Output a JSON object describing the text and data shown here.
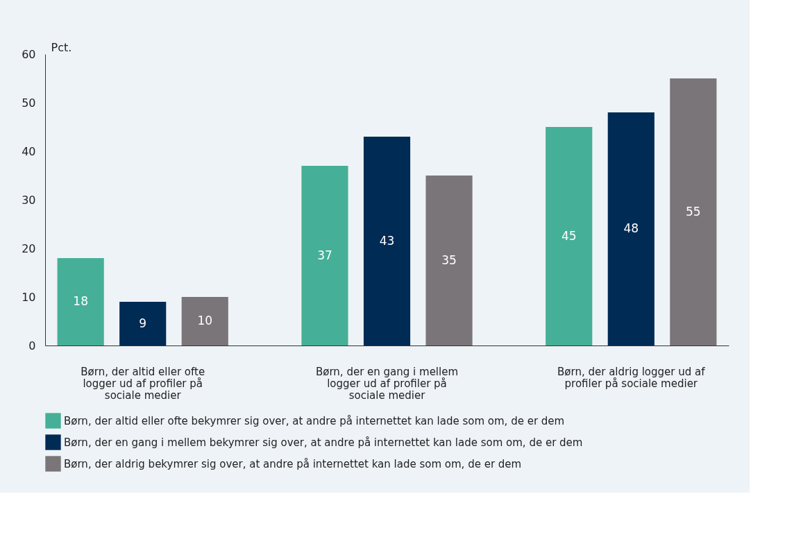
{
  "chart_data": {
    "type": "bar",
    "ylabel": "Pct.",
    "categories": [
      "Børn, der altid eller ofte logger ud af profiler på sociale medier",
      "Børn, der en gang i mellem logger ud af profiler på sociale medier",
      "Børn, der aldrig logger ud af profiler på sociale medier"
    ],
    "series": [
      {
        "name": "Børn, der altid eller ofte bekymrer sig over, at andre på internettet kan lade som om, de er dem",
        "color": "#45b097",
        "values": [
          18,
          37,
          45
        ]
      },
      {
        "name": "Børn, der en gang i mellem bekymrer sig over, at andre på internettet kan lade som om, de er dem",
        "color": "#002b55",
        "values": [
          9,
          43,
          48
        ]
      },
      {
        "name": "Børn, der aldrig bekymrer sig over, at andre på internettet kan lade som om, de er dem",
        "color": "#7a7578",
        "values": [
          10,
          35,
          55
        ]
      }
    ],
    "ylim": [
      0,
      60
    ],
    "yticks": [
      0,
      10,
      20,
      30,
      40,
      50,
      60
    ],
    "grid": false,
    "legend": "bottom",
    "data_labels": true
  }
}
